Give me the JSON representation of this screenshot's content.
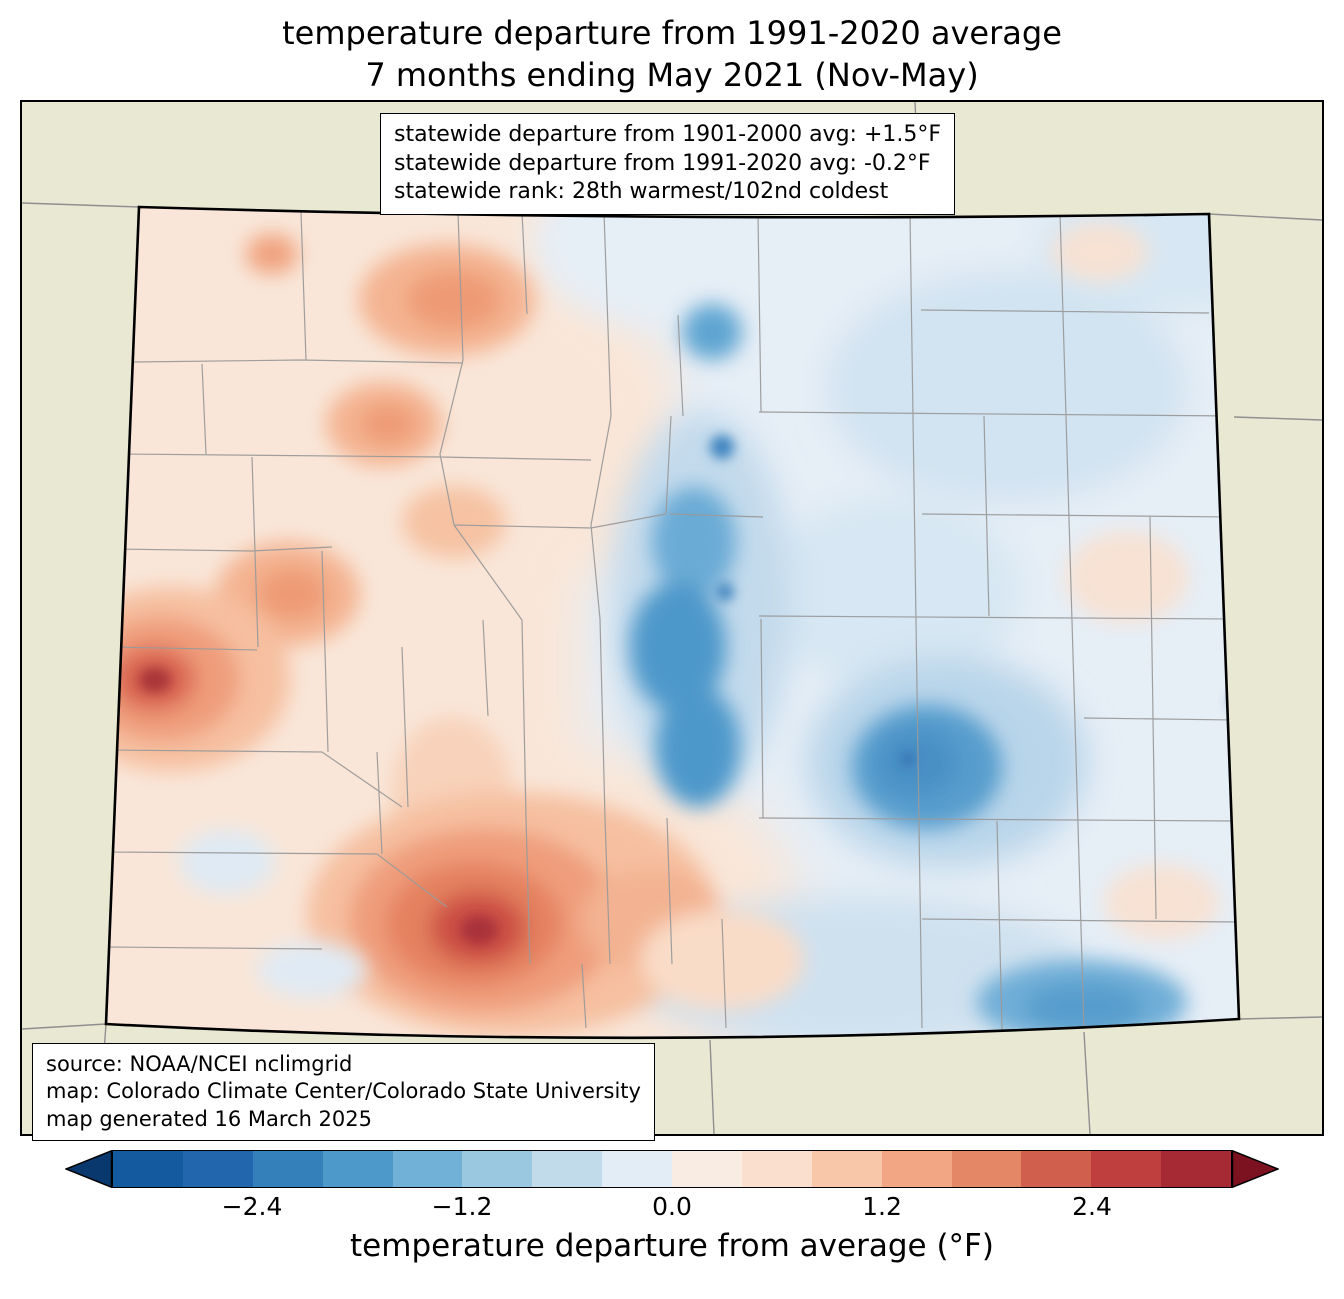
{
  "title": {
    "line1": "temperature departure from 1991-2020 average",
    "line2": "7 months ending May 2021 (Nov-May)"
  },
  "stats_box": {
    "lines": [
      "statewide departure from 1901-2000 avg: +1.5°F",
      "statewide departure from 1991-2020 avg: -0.2°F",
      "statewide rank: 28th warmest/102nd coldest"
    ]
  },
  "source_box": {
    "lines": [
      "source: NOAA/NCEI nclimgrid",
      "map: Colorado Climate Center/Colorado State University",
      "map generated 16 March 2025"
    ]
  },
  "colorbar": {
    "label": "temperature departure from average (°F)",
    "range": [
      -3.2,
      3.2
    ],
    "ticks": [
      {
        "value": -2.4,
        "label": "−2.4"
      },
      {
        "value": -1.2,
        "label": "−1.2"
      },
      {
        "value": 0.0,
        "label": "0.0"
      },
      {
        "value": 1.2,
        "label": "1.2"
      },
      {
        "value": 2.4,
        "label": "2.4"
      }
    ],
    "segment_colors": [
      "#135a9e",
      "#2267ad",
      "#3380ba",
      "#4d99c9",
      "#72b1d7",
      "#9ac8e1",
      "#c2dbeb",
      "#e2edf5",
      "#f9ece3",
      "#fbdfce",
      "#f8c6a9",
      "#f2a683",
      "#e38767",
      "#d15f4e",
      "#bf3f3f",
      "#a62a33"
    ],
    "left_arrow_color": "#09386e",
    "right_arrow_color": "#7c1120"
  },
  "map": {
    "background_color": "#e9e8d2",
    "state_border_color": "#000000",
    "county_line_color": "#9a9a9a",
    "neighbor_line_color": "#8f8f8f"
  }
}
